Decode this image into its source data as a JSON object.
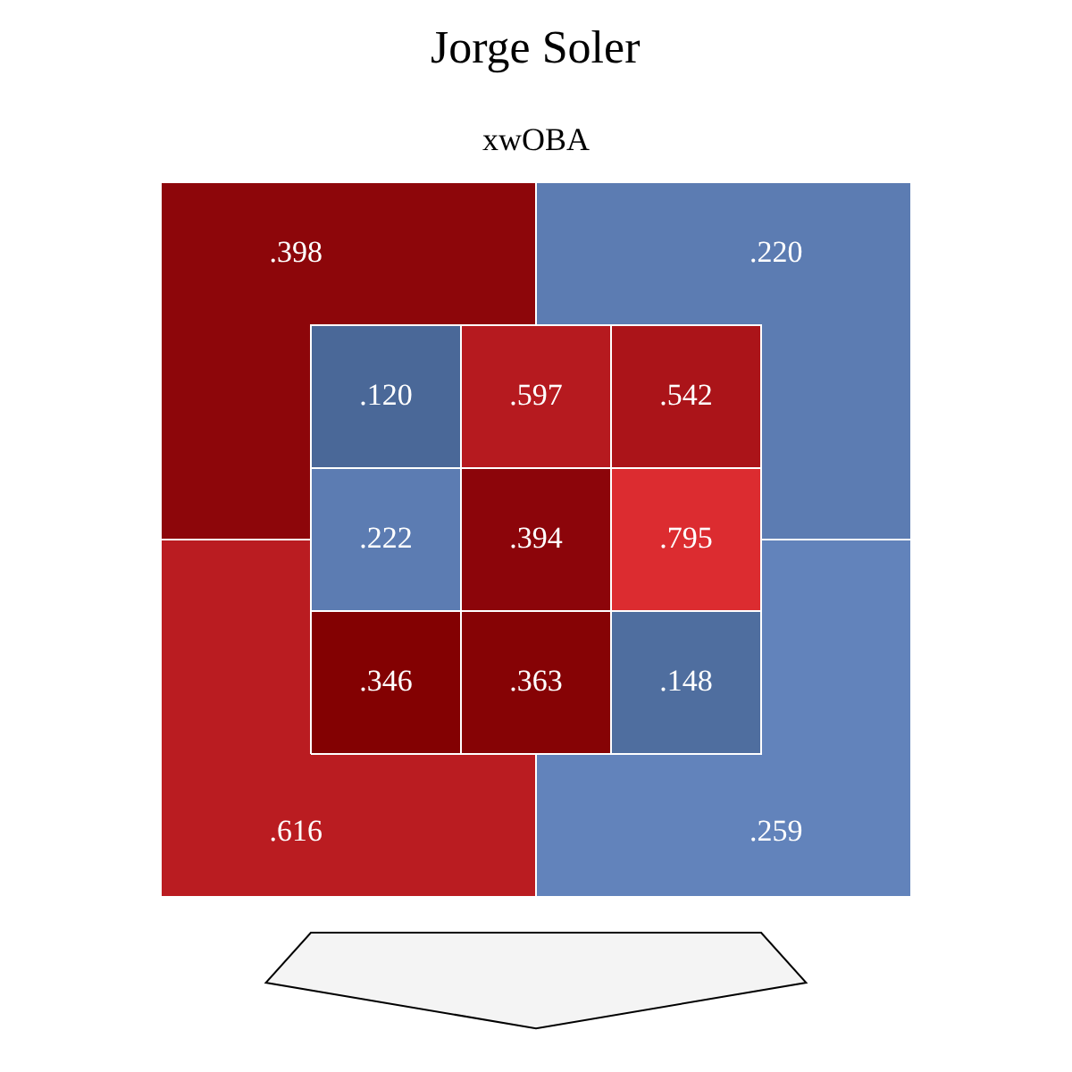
{
  "chart_data": [
    {
      "type": "heatmap",
      "title": "Jorge Soler",
      "subtitle": "xwOBA",
      "categories": [
        null,
        null
      ],
      "y_categories": [
        null,
        null
      ],
      "cells": [
        [
          0.398,
          0.22
        ],
        [
          0.616,
          0.259
        ]
      ],
      "cell_labels": [
        [
          ".398",
          ".220"
        ],
        [
          ".616",
          ".259"
        ]
      ]
    },
    {
      "type": "heatmap",
      "categories": [
        null,
        null,
        null
      ],
      "y_categories": [
        null,
        null,
        null
      ],
      "cells": [
        [
          0.12,
          0.597,
          0.542
        ],
        [
          0.222,
          0.394,
          0.795
        ],
        [
          0.346,
          0.363,
          0.148
        ]
      ],
      "cell_labels": [
        [
          ".120",
          ".597",
          ".542"
        ],
        [
          ".222",
          ".394",
          ".795"
        ],
        [
          ".346",
          ".363",
          ".148"
        ]
      ]
    }
  ]
}
